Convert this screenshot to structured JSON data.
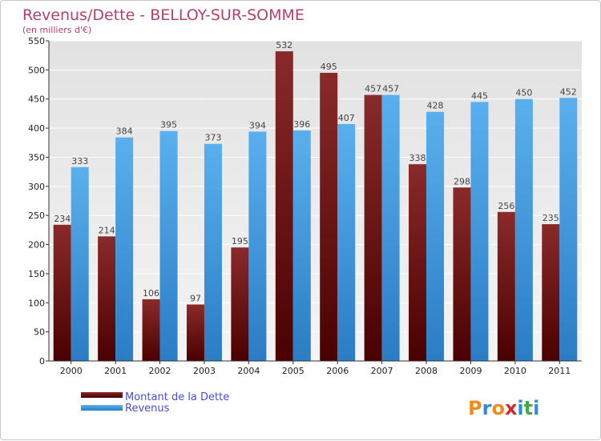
{
  "chart_data": {
    "type": "bar",
    "title": "Revenus/Dette - BELLOY-SUR-SOMME",
    "subtitle": "(en milliers d'€)",
    "categories": [
      "2000",
      "2001",
      "2002",
      "2003",
      "2004",
      "2005",
      "2006",
      "2007",
      "2008",
      "2009",
      "2010",
      "2011"
    ],
    "series": [
      {
        "name": "Montant de la Dette",
        "color": "#7a1c1c",
        "values": [
          234,
          214,
          106,
          97,
          195,
          532,
          495,
          457,
          338,
          298,
          256,
          235
        ]
      },
      {
        "name": "Revenus",
        "color": "#3d9be0",
        "values": [
          333,
          384,
          395,
          373,
          394,
          396,
          407,
          457,
          428,
          445,
          450,
          452
        ]
      }
    ],
    "ylim": [
      0,
      550
    ],
    "yticks": [
      0,
      50,
      100,
      150,
      200,
      250,
      300,
      350,
      400,
      450,
      500,
      550
    ],
    "grid": true,
    "legend_position": "bottom-left"
  },
  "brand": {
    "letters": [
      "P",
      "r",
      "o",
      "x",
      "i",
      "t",
      "i"
    ],
    "colors": [
      "#f08c1e",
      "#2a8fd6",
      "#f08c1e",
      "#d62a2a",
      "#2a8fd6",
      "#3fae3f",
      "#2a8fd6"
    ]
  }
}
